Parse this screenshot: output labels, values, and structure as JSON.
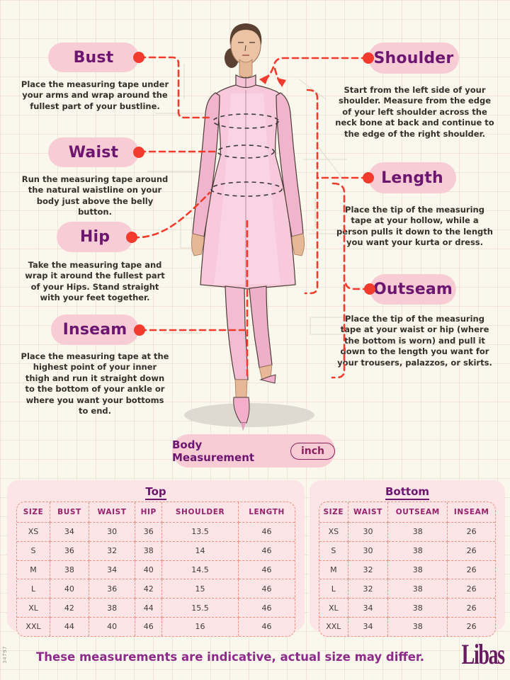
{
  "measurements": {
    "bust": {
      "title": "Bust",
      "description": "Place the measuring tape under your arms and wrap around the fullest part of your bustline."
    },
    "waist": {
      "title": "Waist",
      "description": "Run the measuring tape around the natural waistline on your body just above the belly button."
    },
    "hip": {
      "title": "Hip",
      "description": "Take the measuring tape and wrap it around the fullest part of your Hips. Stand straight with your feet together."
    },
    "inseam": {
      "title": "Inseam",
      "description": "Place the measuring tape at the highest point of your inner thigh and run it straight down to the bottom of your ankle or where you want your bottoms to end."
    },
    "shoulder": {
      "title": "Shoulder",
      "description": "Start from the left side of your shoulder. Measure from the edge of your left shoulder across the neck bone at back and continue to the edge of the right shoulder."
    },
    "length": {
      "title": "Length",
      "description": "Place the tip of the measuring tape at your hollow, while a person pulls it down to the length you want your kurta or dress."
    },
    "outseam": {
      "title": "Outseam",
      "description": "Place the tip of the measuring tape at your waist or hip (where the bottom is worn) and pull it down to the length you want for your trousers, palazzos, or skirts."
    }
  },
  "unit_bar": {
    "title": "Body Measurement",
    "unit": "inch"
  },
  "size_tables": {
    "top": {
      "title": "Top",
      "headers": [
        "SIZE",
        "BUST",
        "WAIST",
        "HIP",
        "SHOULDER",
        "LENGTH"
      ],
      "rows": [
        [
          "XS",
          "34",
          "30",
          "36",
          "13.5",
          "46"
        ],
        [
          "S",
          "36",
          "32",
          "38",
          "14",
          "46"
        ],
        [
          "M",
          "38",
          "34",
          "40",
          "14.5",
          "46"
        ],
        [
          "L",
          "40",
          "36",
          "42",
          "15",
          "46"
        ],
        [
          "XL",
          "42",
          "38",
          "44",
          "15.5",
          "46"
        ],
        [
          "XXL",
          "44",
          "40",
          "46",
          "16",
          "46"
        ]
      ]
    },
    "bottom": {
      "title": "Bottom",
      "headers": [
        "SIZE",
        "WAIST",
        "OUTSEAM",
        "INSEAM"
      ],
      "rows": [
        [
          "XS",
          "30",
          "38",
          "26"
        ],
        [
          "S",
          "30",
          "38",
          "26"
        ],
        [
          "M",
          "32",
          "38",
          "26"
        ],
        [
          "L",
          "32",
          "38",
          "26"
        ],
        [
          "XL",
          "34",
          "38",
          "26"
        ],
        [
          "XXL",
          "34",
          "38",
          "26"
        ]
      ]
    }
  },
  "footer": {
    "note": "These measurements are indicative, actual size may differ.",
    "brand": "Libas"
  },
  "side_code": "34797",
  "colors": {
    "accent_red": "#f23b2c",
    "pill_pink": "#f8ccd5",
    "heading_purple": "#6d1670",
    "table_header_magenta": "#97226b",
    "table_bg": "#fce4e7",
    "footer_text": "#8e2a8a",
    "brand_purple": "#691b61"
  }
}
